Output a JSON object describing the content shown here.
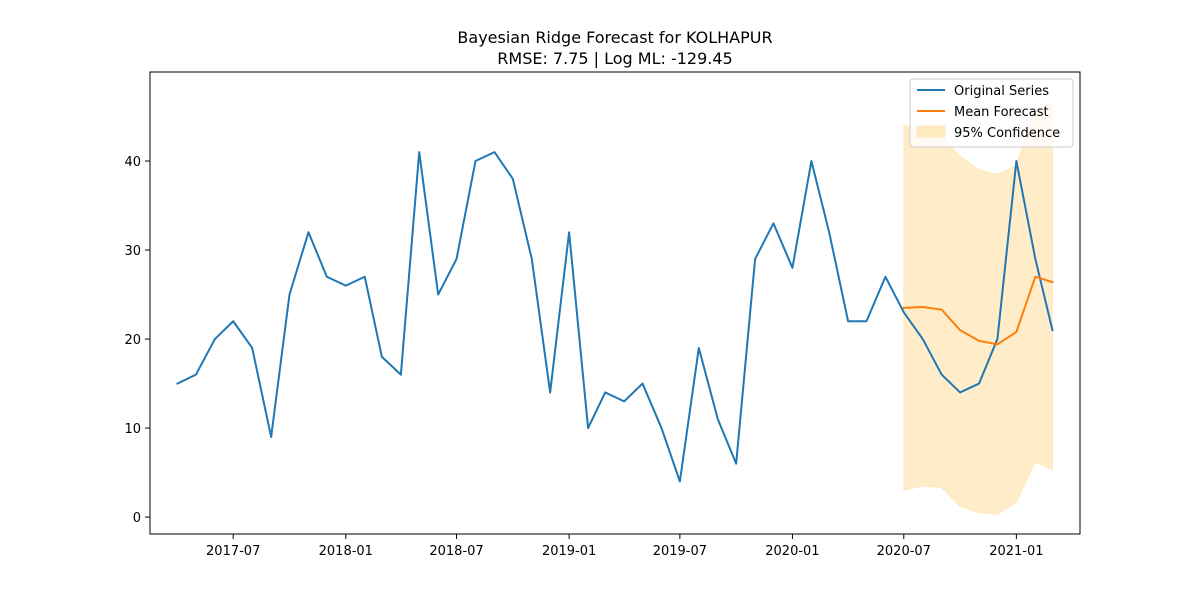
{
  "chart_data": {
    "type": "line",
    "title": "Bayesian Ridge Forecast for KOLHAPUR",
    "subtitle": "RMSE: 7.75 | Log ML: -129.45",
    "xlabel": "",
    "ylabel": "",
    "x_range": [
      "2017-02-15",
      "2021-04-15"
    ],
    "ylim": [
      -1.9,
      50
    ],
    "grid": false,
    "legend_position": "top-right",
    "x_ticks": [
      {
        "date": "2017-07-01",
        "label": "2017-07"
      },
      {
        "date": "2018-01-01",
        "label": "2018-01"
      },
      {
        "date": "2018-07-01",
        "label": "2018-07"
      },
      {
        "date": "2019-01-01",
        "label": "2019-01"
      },
      {
        "date": "2019-07-01",
        "label": "2019-07"
      },
      {
        "date": "2020-01-01",
        "label": "2020-01"
      },
      {
        "date": "2020-07-01",
        "label": "2020-07"
      },
      {
        "date": "2021-01-01",
        "label": "2021-01"
      }
    ],
    "y_ticks": [
      {
        "value": 0,
        "label": "0"
      },
      {
        "value": 10,
        "label": "10"
      },
      {
        "value": 20,
        "label": "20"
      },
      {
        "value": 30,
        "label": "30"
      },
      {
        "value": 40,
        "label": "40"
      }
    ],
    "colors": {
      "original": "#1f77b4",
      "forecast": "#ff7f0e",
      "confidence": "#ffe9bf"
    },
    "original_series": {
      "name": "Original Series",
      "x": [
        "2017-04",
        "2017-05",
        "2017-06",
        "2017-07",
        "2017-08",
        "2017-09",
        "2017-10",
        "2017-11",
        "2017-12",
        "2018-01",
        "2018-02",
        "2018-03",
        "2018-04",
        "2018-05",
        "2018-06",
        "2018-07",
        "2018-08",
        "2018-09",
        "2018-10",
        "2018-11",
        "2018-12",
        "2019-01",
        "2019-02",
        "2019-03",
        "2019-04",
        "2019-05",
        "2019-06",
        "2019-07",
        "2019-08",
        "2019-09",
        "2019-10",
        "2019-11",
        "2019-12",
        "2020-01",
        "2020-02",
        "2020-03",
        "2020-04",
        "2020-05",
        "2020-06",
        "2020-07",
        "2020-08",
        "2020-09",
        "2020-10",
        "2020-11",
        "2020-12",
        "2021-01",
        "2021-02",
        "2021-03"
      ],
      "values": [
        15,
        16,
        20,
        22,
        19,
        9,
        25,
        32,
        27,
        26,
        27,
        18,
        16,
        41,
        25,
        29,
        40,
        41,
        38,
        29,
        14,
        32,
        10,
        14,
        13,
        15,
        10,
        4,
        19,
        11,
        6,
        29,
        33,
        28,
        40,
        32,
        22,
        22,
        27,
        23,
        20,
        16,
        14,
        15,
        20,
        40,
        29,
        21
      ]
    },
    "forecast_series": {
      "name": "Mean Forecast",
      "x": [
        "2020-07",
        "2020-08",
        "2020-09",
        "2020-10",
        "2020-11",
        "2020-12",
        "2021-01",
        "2021-02",
        "2021-03"
      ],
      "values": [
        23.5,
        23.6,
        23.3,
        21.0,
        19.8,
        19.4,
        20.8,
        27.0,
        26.4
      ]
    },
    "confidence_band": {
      "name": "95% Confidence",
      "x": [
        "2020-07",
        "2020-08",
        "2020-09",
        "2020-10",
        "2020-11",
        "2020-12",
        "2021-01",
        "2021-02",
        "2021-03"
      ],
      "lower": [
        3.0,
        3.5,
        3.3,
        1.2,
        0.5,
        0.3,
        1.7,
        6.2,
        5.3
      ],
      "upper": [
        44.0,
        43.5,
        42.8,
        40.5,
        39.0,
        38.5,
        39.5,
        46.0,
        46.5
      ]
    }
  }
}
